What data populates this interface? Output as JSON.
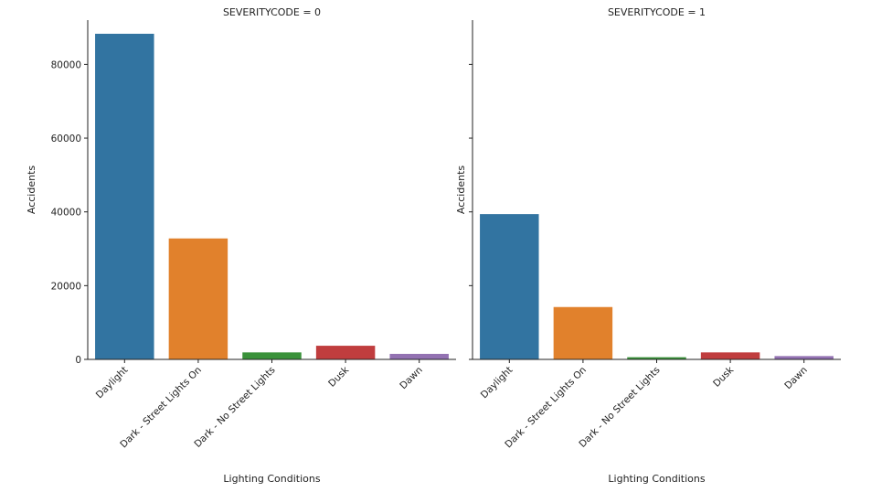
{
  "chart_data": [
    {
      "type": "bar",
      "title": "SEVERITYCODE = 0",
      "xlabel": "Lighting Conditions",
      "ylabel": "Accidents",
      "ylim": [
        0,
        92000
      ],
      "yticks": [
        0,
        20000,
        40000,
        60000,
        80000
      ],
      "categories": [
        "Daylight",
        "Dark - Street Lights On",
        "Dark - No Street Lights",
        "Dusk",
        "Dawn"
      ],
      "values": [
        88300,
        32800,
        1900,
        3700,
        1500
      ],
      "colors": [
        "#3274a1",
        "#e1812c",
        "#3a923a",
        "#c03d3e",
        "#9372b2"
      ],
      "grid": false
    },
    {
      "type": "bar",
      "title": "SEVERITYCODE = 1",
      "xlabel": "Lighting Conditions",
      "ylabel": "Accidents",
      "ylim": [
        0,
        92000
      ],
      "yticks": [
        0,
        20000,
        40000,
        60000,
        80000
      ],
      "categories": [
        "Daylight",
        "Dark - Street Lights On",
        "Dark - No Street Lights",
        "Dusk",
        "Dawn"
      ],
      "values": [
        39400,
        14200,
        600,
        1900,
        900
      ],
      "colors": [
        "#3274a1",
        "#e1812c",
        "#3a923a",
        "#c03d3e",
        "#9372b2"
      ],
      "grid": false
    }
  ]
}
